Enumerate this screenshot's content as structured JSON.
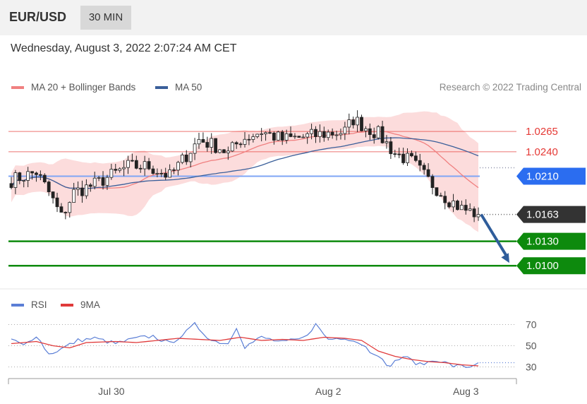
{
  "header": {
    "symbol": "EUR/USD",
    "interval": "30 MIN"
  },
  "timestamp": "Wednesday, August 3, 2022 2:07:24 AM CET",
  "legend": [
    {
      "label": "MA 20 + Bollinger Bands",
      "color": "#f08080"
    },
    {
      "label": "MA 50",
      "color": "#3a5f9a"
    }
  ],
  "credit": "Research © 2022 Trading Central",
  "rsi_legend": [
    {
      "label": "RSI",
      "color": "#5b7fd6"
    },
    {
      "label": "9MA",
      "color": "#e03a3a"
    }
  ],
  "colors": {
    "resistance": "#e53935",
    "pivot": "#2b6df0",
    "support": "#0d8a0d",
    "current": "#333333",
    "arrow": "#2f5d9b",
    "band": "#fcd6d6"
  },
  "chart_data": {
    "type": "candlestick",
    "ylim": [
      1.0075,
      1.0305
    ],
    "levels": [
      {
        "value": 1.0265,
        "label": "1.0265",
        "kind": "resistance"
      },
      {
        "value": 1.024,
        "label": "1.0240",
        "kind": "resistance"
      },
      {
        "value": 1.021,
        "label": "1.0210",
        "kind": "pivot"
      },
      {
        "value": 1.0163,
        "label": "1.0163",
        "kind": "current"
      },
      {
        "value": 1.013,
        "label": "1.0130",
        "kind": "support"
      },
      {
        "value": 1.01,
        "label": "1.0100",
        "kind": "support"
      }
    ],
    "x_ticks": [
      "Jul 30",
      "Aug 2",
      "Aug 3"
    ],
    "candle_count": 113,
    "close_anchors": [
      [
        0,
        1.0205
      ],
      [
        6,
        1.0215
      ],
      [
        9,
        1.019
      ],
      [
        12,
        1.016
      ],
      [
        15,
        1.019
      ],
      [
        20,
        1.02
      ],
      [
        28,
        1.0222
      ],
      [
        33,
        1.0222
      ],
      [
        38,
        1.021
      ],
      [
        45,
        1.0255
      ],
      [
        50,
        1.0245
      ],
      [
        52,
        1.0238
      ],
      [
        55,
        1.0255
      ],
      [
        60,
        1.0265
      ],
      [
        65,
        1.0255
      ],
      [
        70,
        1.0258
      ],
      [
        75,
        1.0262
      ],
      [
        80,
        1.0265
      ],
      [
        82,
        1.028
      ],
      [
        85,
        1.027
      ],
      [
        88,
        1.0262
      ],
      [
        92,
        1.0238
      ],
      [
        96,
        1.0228
      ],
      [
        100,
        1.0205
      ],
      [
        104,
        1.0185
      ],
      [
        108,
        1.017
      ],
      [
        112,
        1.0163
      ]
    ],
    "forecast": {
      "from": 1.0163,
      "to": 1.01,
      "direction": "down"
    },
    "rsi": {
      "ylim": [
        25,
        75
      ],
      "ticks": [
        70,
        50,
        30
      ],
      "rsi_anchors": [
        [
          0,
          56
        ],
        [
          3,
          50
        ],
        [
          6,
          60
        ],
        [
          9,
          42
        ],
        [
          12,
          47
        ],
        [
          16,
          55
        ],
        [
          20,
          57
        ],
        [
          25,
          52
        ],
        [
          30,
          57
        ],
        [
          34,
          59
        ],
        [
          38,
          52
        ],
        [
          42,
          63
        ],
        [
          44,
          70
        ],
        [
          48,
          55
        ],
        [
          52,
          52
        ],
        [
          54,
          68
        ],
        [
          56,
          49
        ],
        [
          60,
          58
        ],
        [
          65,
          53
        ],
        [
          70,
          57
        ],
        [
          73,
          70
        ],
        [
          76,
          56
        ],
        [
          80,
          58
        ],
        [
          84,
          52
        ],
        [
          86,
          45
        ],
        [
          88,
          42
        ],
        [
          90,
          30
        ],
        [
          94,
          40
        ],
        [
          98,
          32
        ],
        [
          102,
          37
        ],
        [
          106,
          31
        ],
        [
          110,
          30
        ],
        [
          112,
          35
        ]
      ],
      "ma9_anchors": [
        [
          0,
          52
        ],
        [
          6,
          54
        ],
        [
          10,
          50
        ],
        [
          14,
          48
        ],
        [
          18,
          53
        ],
        [
          25,
          54
        ],
        [
          30,
          53
        ],
        [
          35,
          55
        ],
        [
          40,
          57
        ],
        [
          45,
          56
        ],
        [
          50,
          55
        ],
        [
          55,
          58
        ],
        [
          60,
          55
        ],
        [
          65,
          56
        ],
        [
          70,
          55
        ],
        [
          75,
          58
        ],
        [
          80,
          57
        ],
        [
          84,
          55
        ],
        [
          88,
          45
        ],
        [
          92,
          40
        ],
        [
          96,
          37
        ],
        [
          100,
          35
        ],
        [
          104,
          34
        ],
        [
          108,
          32
        ],
        [
          112,
          31
        ]
      ]
    }
  }
}
